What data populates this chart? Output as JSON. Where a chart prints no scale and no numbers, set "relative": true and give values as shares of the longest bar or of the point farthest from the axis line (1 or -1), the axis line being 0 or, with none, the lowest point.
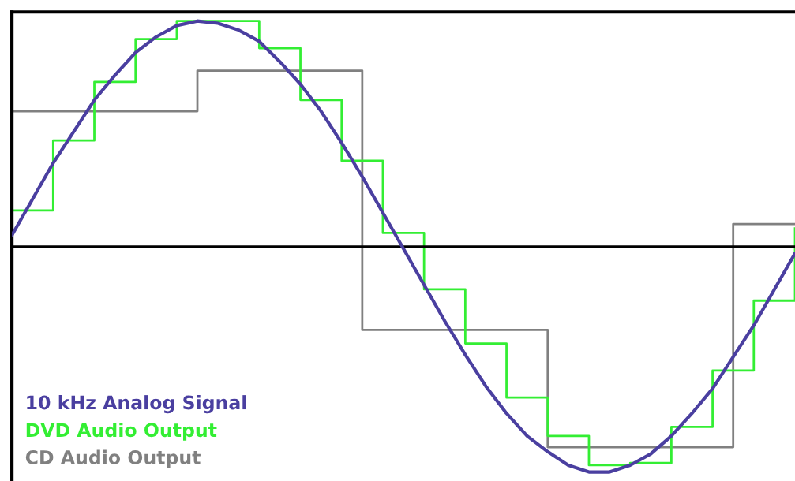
{
  "chart_data": {
    "type": "line",
    "relative": true,
    "legend": "bottom left",
    "tick_labels": false,
    "categories": [
      null,
      null,
      null,
      null,
      null,
      null,
      null,
      null,
      null,
      null,
      null,
      null,
      null,
      null,
      null,
      null,
      null,
      null,
      null,
      null,
      null,
      null,
      null,
      null,
      null,
      null,
      null,
      null,
      null,
      null,
      null,
      null,
      null,
      null,
      null,
      null,
      null,
      null,
      null
    ],
    "series": [
      {
        "name": "CD Audio Output",
        "type": "step",
        "color": "#808080",
        "values": [
          0.6,
          0.6,
          0.6,
          0.6,
          0.6,
          0.6,
          0.6,
          0.6,
          0.6,
          0.78,
          0.78,
          0.78,
          0.78,
          0.78,
          0.78,
          0.78,
          0.78,
          -0.37,
          -0.37,
          -0.37,
          -0.37,
          -0.37,
          -0.37,
          -0.37,
          -0.37,
          -0.37,
          -0.89,
          -0.89,
          -0.89,
          -0.89,
          -0.89,
          -0.89,
          -0.89,
          -0.89,
          -0.89,
          0.1,
          0.1,
          0.1,
          0.1
        ]
      },
      {
        "name": "DVD Audio Output",
        "type": "step",
        "color": "#33ee33",
        "values": [
          0.16,
          0.16,
          0.47,
          0.47,
          0.73,
          0.73,
          0.92,
          0.92,
          1.0,
          1.0,
          1.0,
          1.0,
          0.88,
          0.88,
          0.65,
          0.65,
          0.38,
          0.38,
          0.06,
          0.06,
          -0.19,
          -0.19,
          -0.43,
          -0.43,
          -0.67,
          -0.67,
          -0.84,
          -0.84,
          -0.97,
          -0.97,
          -0.96,
          -0.96,
          -0.8,
          -0.8,
          -0.55,
          -0.55,
          -0.24,
          -0.24,
          0.08
        ]
      },
      {
        "name": "10 kHz Analog Signal",
        "color": "#4a3fa0",
        "values": [
          0.05,
          0.21,
          0.37,
          0.51,
          0.65,
          0.76,
          0.86,
          0.93,
          0.98,
          1.0,
          0.99,
          0.96,
          0.91,
          0.82,
          0.72,
          0.6,
          0.46,
          0.31,
          0.15,
          -0.01,
          -0.17,
          -0.33,
          -0.48,
          -0.62,
          -0.74,
          -0.84,
          -0.91,
          -0.97,
          -1.0,
          -1.0,
          -0.97,
          -0.92,
          -0.84,
          -0.74,
          -0.63,
          -0.49,
          -0.35,
          -0.19,
          -0.03
        ]
      }
    ]
  }
}
